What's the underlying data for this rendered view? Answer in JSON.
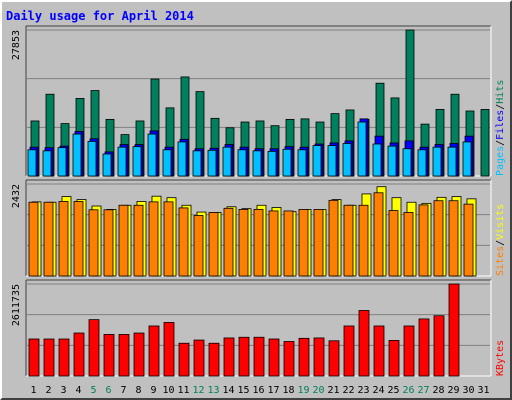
{
  "chart_data": {
    "type": "bar",
    "title": "Daily usage for April 2014",
    "days": [
      "1",
      "2",
      "3",
      "4",
      "5",
      "6",
      "7",
      "8",
      "9",
      "10",
      "11",
      "12",
      "13",
      "14",
      "15",
      "16",
      "17",
      "18",
      "19",
      "20",
      "21",
      "22",
      "23",
      "24",
      "25",
      "26",
      "27",
      "28",
      "29",
      "30",
      "31"
    ],
    "weekend_days": [
      "5",
      "6",
      "12",
      "13",
      "19",
      "20",
      "26",
      "27"
    ],
    "panels": [
      {
        "id": "pages-files-hits",
        "legend": [
          "Pages",
          "/",
          "Files",
          "/",
          "Hits"
        ],
        "ymax_label": "27853",
        "ylim": [
          0,
          27853
        ],
        "series": [
          {
            "name": "Hits",
            "color": "#00805c",
            "values": [
              10500,
              15600,
              10000,
              14800,
              16300,
              10800,
              7900,
              10500,
              18500,
              13000,
              18900,
              16100,
              11000,
              9200,
              10300,
              10500,
              9600,
              10800,
              10900,
              10300,
              11900,
              12600,
              10800,
              17700,
              14900,
              27853,
              9900,
              12700,
              15600,
              12400,
              12700
            ]
          },
          {
            "name": "Files",
            "color": "#0000ff",
            "values": [
              5500,
              5400,
              5700,
              8500,
              7100,
              4600,
              6000,
              6000,
              8600,
              5500,
              7000,
              5200,
              5300,
              6000,
              5500,
              5200,
              5200,
              5600,
              5500,
              6100,
              6300,
              6700,
              10900,
              7600,
              6300,
              6700,
              5500,
              6000,
              6200,
              7600,
              0
            ]
          },
          {
            "name": "Pages",
            "color": "#00c0ff",
            "values": [
              5000,
              4800,
              5400,
              8000,
              6600,
              4200,
              5500,
              5600,
              8000,
              5000,
              6500,
              4800,
              4900,
              5500,
              5000,
              4800,
              4700,
              5100,
              5000,
              5800,
              5800,
              6200,
              10300,
              6100,
              5700,
              5200,
              5000,
              5500,
              5500,
              6500,
              0
            ]
          }
        ]
      },
      {
        "id": "visits-sites",
        "legend": [
          "Sites",
          "/",
          "Visits"
        ],
        "ymax_label": "2432",
        "ylim": [
          0,
          2432
        ],
        "series": [
          {
            "name": "Visits",
            "color": "#ffff00",
            "values": [
              1960,
              1950,
              2100,
              2020,
              1850,
              1760,
              1870,
              1970,
              2110,
              2070,
              1870,
              1690,
              1680,
              1830,
              1780,
              1870,
              1810,
              1700,
              1760,
              1760,
              2020,
              1870,
              2170,
              2360,
              2070,
              1950,
              1920,
              2080,
              2100,
              2040,
              0
            ]
          },
          {
            "name": "Sites",
            "color": "#ff8000",
            "values": [
              1950,
              1950,
              1970,
              1970,
              1750,
              1750,
              1870,
              1870,
              1960,
              1960,
              1800,
              1600,
              1680,
              1790,
              1760,
              1760,
              1720,
              1720,
              1760,
              1760,
              2000,
              1870,
              1870,
              2200,
              1730,
              1680,
              1880,
              1990,
              1990,
              1900,
              0
            ]
          }
        ]
      },
      {
        "id": "kbytes",
        "legend": [
          "KBytes"
        ],
        "ymax_label": "2611735",
        "ylim": [
          0,
          2611735
        ],
        "series": [
          {
            "name": "KBytes",
            "color": "#ff0000",
            "values": [
              1050000,
              1050000,
              1050000,
              1220000,
              1600000,
              1180000,
              1180000,
              1220000,
              1420000,
              1520000,
              930000,
              1020000,
              930000,
              1080000,
              1100000,
              1100000,
              1050000,
              980000,
              1070000,
              1080000,
              1000000,
              1420000,
              1860000,
              1420000,
              1010000,
              1420000,
              1620000,
              1710000,
              2611735,
              0,
              0
            ]
          }
        ]
      }
    ]
  },
  "colors": {
    "background": "#c0c0c0",
    "plot_background": "#c0c0c0",
    "grid": "#808080",
    "title": "#0000ff",
    "axis_text": "#000000",
    "weekend_text": "#00805c"
  }
}
